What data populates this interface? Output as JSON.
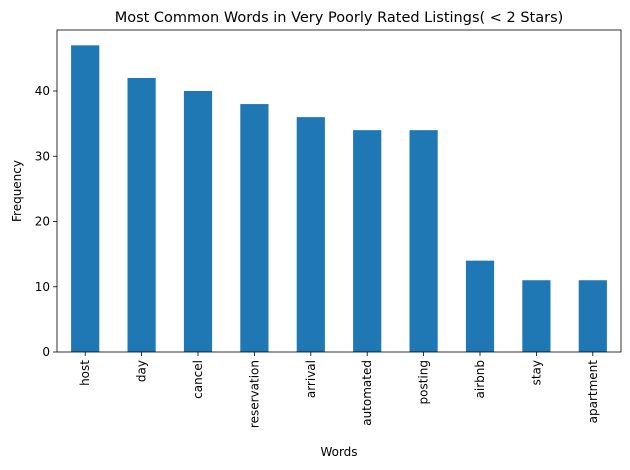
{
  "chart_data": {
    "type": "bar",
    "title": "Most Common Words in Very Poorly Rated Listings( < 2 Stars)",
    "xlabel": "Words",
    "ylabel": "Frequency",
    "categories": [
      "host",
      "day",
      "cancel",
      "reservation",
      "arrival",
      "automated",
      "posting",
      "airbnb",
      "stay",
      "apartment"
    ],
    "values": [
      47,
      42,
      40,
      38,
      36,
      34,
      34,
      14,
      11,
      11
    ],
    "ylim": [
      0,
      49.35
    ],
    "yticks": [
      0,
      10,
      20,
      30,
      40
    ],
    "grid": false,
    "legend": "none",
    "bar_color": "#1f77b4"
  }
}
